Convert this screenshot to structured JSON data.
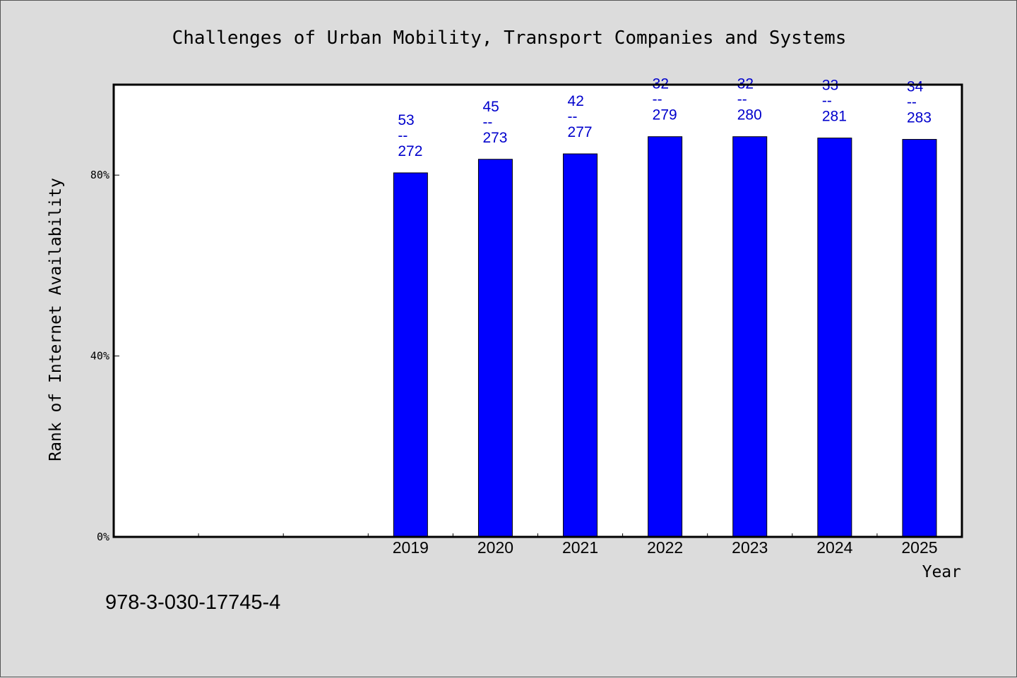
{
  "chart_data": {
    "type": "bar",
    "title": "Challenges of Urban Mobility, Transport Companies and Systems",
    "xlabel": "Year",
    "ylabel": "Rank of Internet Availability",
    "categories": [
      "",
      "",
      "",
      "2019",
      "2020",
      "2021",
      "2022",
      "2023",
      "2024",
      "2025"
    ],
    "values": [
      null,
      null,
      null,
      80.5,
      83.5,
      84.7,
      88.5,
      88.5,
      88.2,
      87.9
    ],
    "labels": [
      null,
      null,
      null,
      [
        "53",
        "--",
        "272"
      ],
      [
        "45",
        "--",
        "273"
      ],
      [
        "42",
        "--",
        "277"
      ],
      [
        "32",
        "--",
        "279"
      ],
      [
        "32",
        "--",
        "280"
      ],
      [
        "33",
        "--",
        "281"
      ],
      [
        "34",
        "--",
        "283"
      ]
    ],
    "ylim": [
      0,
      100
    ],
    "yticks": [
      0,
      40,
      80
    ],
    "ytick_labels": [
      "0%",
      "40%",
      "80%"
    ],
    "bar_color": "#0000ff",
    "label_color": "#0000cc",
    "grid": false,
    "legend": "none"
  },
  "footnote": "978-3-030-17745-4"
}
